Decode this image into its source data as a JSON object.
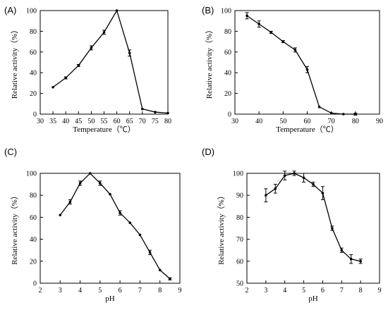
{
  "chart_data": [
    {
      "panel": "(A)",
      "type": "line",
      "xlabel": "Temperature（℃）",
      "ylabel": "Relative activity（%）",
      "xlim": [
        30,
        80
      ],
      "ylim": [
        0,
        100
      ],
      "xticks": [
        30,
        35,
        40,
        45,
        50,
        55,
        60,
        65,
        70,
        75,
        80
      ],
      "yticks": [
        0,
        20,
        40,
        60,
        80,
        100
      ],
      "x": [
        35,
        40,
        45,
        50,
        55,
        60,
        65,
        70,
        75,
        80
      ],
      "y": [
        26,
        35,
        47,
        64,
        79,
        100,
        59,
        5,
        2,
        1
      ],
      "err": [
        0,
        1,
        1,
        2,
        2,
        0,
        3,
        0,
        0,
        0
      ]
    },
    {
      "panel": "(B)",
      "type": "line",
      "xlabel": "Temperature（℃）",
      "ylabel": "Relative activity（%）",
      "xlim": [
        30,
        90
      ],
      "ylim": [
        0,
        100
      ],
      "xticks": [
        30,
        40,
        50,
        60,
        70,
        80,
        90
      ],
      "yticks": [
        0,
        20,
        40,
        60,
        80,
        100
      ],
      "x": [
        35,
        40,
        45,
        50,
        55,
        60,
        65,
        70,
        75,
        80
      ],
      "y": [
        95,
        87,
        79,
        70,
        62,
        43,
        7,
        1,
        0,
        0
      ],
      "err": [
        3,
        3,
        1,
        1,
        2,
        3,
        0,
        0,
        0,
        1
      ]
    },
    {
      "panel": "(C)",
      "type": "line",
      "xlabel": "pH",
      "ylabel": "Relative activity（%）",
      "xlim": [
        2,
        9
      ],
      "ylim": [
        0,
        100
      ],
      "xticks": [
        2,
        3,
        4,
        5,
        6,
        7,
        8,
        9
      ],
      "yticks": [
        0,
        20,
        40,
        60,
        80,
        100
      ],
      "x": [
        3,
        3.5,
        4,
        4.5,
        5,
        5.5,
        6,
        6.5,
        7,
        7.5,
        8,
        8.5
      ],
      "y": [
        62,
        74,
        91,
        100,
        91,
        81,
        64,
        55,
        44,
        28,
        12,
        4
      ],
      "err": [
        0,
        2,
        2,
        0,
        2,
        0,
        2,
        0,
        0,
        2,
        0,
        1
      ]
    },
    {
      "panel": "(D)",
      "type": "line",
      "xlabel": "pH",
      "ylabel": "Relative activity（%）",
      "xlim": [
        2,
        9
      ],
      "ylim": [
        50,
        100
      ],
      "xticks": [
        2,
        3,
        4,
        5,
        6,
        7,
        8,
        9
      ],
      "yticks": [
        50,
        60,
        70,
        80,
        90,
        100
      ],
      "x": [
        3,
        3.5,
        4,
        4.5,
        5,
        5.5,
        6,
        6.5,
        7,
        7.5,
        8
      ],
      "y": [
        90,
        93,
        99,
        100,
        98,
        95,
        91,
        75,
        65,
        61,
        60
      ],
      "err": [
        3,
        2,
        2,
        1,
        2,
        1,
        3,
        1,
        1,
        2,
        1
      ]
    }
  ]
}
